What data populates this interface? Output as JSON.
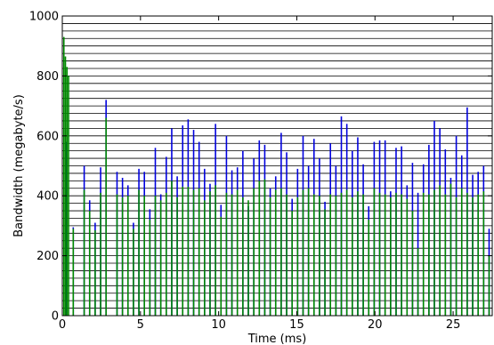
{
  "chart_data": {
    "type": "bar",
    "title": "",
    "xlabel": "Time (ms)",
    "ylabel": "Bandwidth (megabyte/s)",
    "xlim": [
      0,
      27.5
    ],
    "ylim": [
      0,
      1000
    ],
    "xticks": [
      0,
      5,
      10,
      15,
      20,
      25
    ],
    "yticks": [
      0,
      200,
      400,
      600,
      800,
      1000
    ],
    "grid": "horizontal lines every 25 MB/s",
    "grid_step": 25,
    "bar_width_ms": 0.09,
    "series": [
      {
        "color": "#0000dd",
        "x": [
          0.25,
          0.7,
          1.4,
          1.75,
          2.1,
          2.45,
          2.8,
          3.5,
          3.85,
          4.2,
          4.55,
          4.9,
          5.25,
          5.6,
          5.95,
          6.3,
          6.65,
          7.0,
          7.35,
          7.7,
          8.05,
          8.4,
          8.75,
          9.1,
          9.45,
          9.8,
          10.15,
          10.5,
          10.85,
          11.2,
          11.55,
          11.9,
          12.25,
          12.6,
          12.95,
          13.3,
          13.65,
          14.0,
          14.35,
          14.7,
          15.05,
          15.4,
          15.75,
          16.1,
          16.45,
          16.8,
          17.15,
          17.5,
          17.85,
          18.2,
          18.55,
          18.9,
          19.25,
          19.6,
          19.95,
          20.3,
          20.65,
          21.0,
          21.35,
          21.7,
          22.05,
          22.4,
          22.75,
          23.1,
          23.45,
          23.8,
          24.15,
          24.5,
          24.85,
          25.2,
          25.55,
          25.9,
          26.25,
          26.6,
          26.95,
          27.3
        ],
        "values": [
          580,
          295,
          500,
          385,
          310,
          495,
          720,
          480,
          460,
          435,
          310,
          490,
          480,
          355,
          560,
          405,
          530,
          625,
          465,
          635,
          655,
          620,
          580,
          490,
          440,
          640,
          370,
          600,
          485,
          495,
          550,
          365,
          525,
          585,
          570,
          425,
          465,
          610,
          545,
          390,
          490,
          600,
          500,
          590,
          525,
          380,
          575,
          500,
          665,
          640,
          550,
          595,
          505,
          365,
          580,
          585,
          585,
          415,
          560,
          565,
          435,
          510,
          410,
          505,
          570,
          650,
          625,
          555,
          460,
          600,
          535,
          695,
          470,
          480,
          500,
          290
        ]
      },
      {
        "color": "#008800",
        "x": [
          0.1,
          0.2,
          0.3,
          0.4,
          0.7,
          1.4,
          1.75,
          2.1,
          2.45,
          2.8,
          3.5,
          3.85,
          4.2,
          4.55,
          4.9,
          5.25,
          5.6,
          5.95,
          6.3,
          6.65,
          7.0,
          7.35,
          7.7,
          8.05,
          8.4,
          8.75,
          9.1,
          9.45,
          9.8,
          10.15,
          10.5,
          10.85,
          11.2,
          11.55,
          11.9,
          12.25,
          12.6,
          12.95,
          13.3,
          13.65,
          14.0,
          14.35,
          14.7,
          15.05,
          15.4,
          15.75,
          16.1,
          16.45,
          16.8,
          17.15,
          17.5,
          17.85,
          18.2,
          18.55,
          18.9,
          19.25,
          19.6,
          19.95,
          20.3,
          20.65,
          21.0,
          21.35,
          21.7,
          22.05,
          22.4,
          22.75,
          23.1,
          23.45,
          23.8,
          24.15,
          24.5,
          24.85,
          25.2,
          25.55,
          25.9,
          26.25,
          26.6,
          26.95,
          27.3
        ],
        "values": [
          930,
          865,
          830,
          800,
          290,
          420,
          350,
          285,
          410,
          660,
          405,
          395,
          400,
          290,
          420,
          400,
          320,
          400,
          385,
          410,
          450,
          395,
          430,
          430,
          420,
          425,
          385,
          415,
          435,
          330,
          410,
          405,
          420,
          395,
          385,
          425,
          450,
          455,
          395,
          420,
          425,
          405,
          350,
          395,
          420,
          425,
          405,
          400,
          355,
          405,
          400,
          410,
          420,
          395,
          415,
          405,
          320,
          425,
          410,
          405,
          395,
          410,
          405,
          390,
          350,
          225,
          410,
          405,
          420,
          435,
          405,
          440,
          395,
          425,
          410,
          395,
          405,
          415,
          200
        ]
      }
    ]
  }
}
